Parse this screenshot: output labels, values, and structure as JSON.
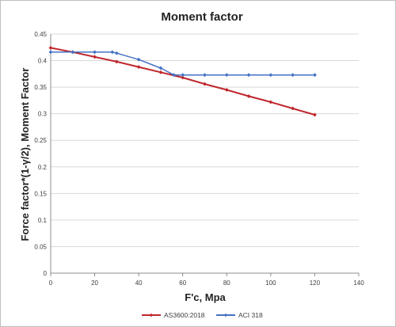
{
  "chart_data": {
    "type": "line",
    "title": "Moment factor",
    "xlabel": "F'c, Mpa",
    "ylabel": "Force factor*(1-γ/2),    Moment Factor",
    "xlim": [
      0,
      140
    ],
    "ylim": [
      0,
      0.45
    ],
    "x_ticks": [
      "0",
      "20",
      "40",
      "60",
      "80",
      "100",
      "120",
      "140"
    ],
    "y_ticks": [
      "0",
      "0.05",
      "0.1",
      "0.15",
      "0.2",
      "0.25",
      "0.3",
      "0.35",
      "0.4",
      "0.45"
    ],
    "grid": true,
    "legend_position": "bottom",
    "series": [
      {
        "name": "AS3600:2018",
        "color": "#c0272d",
        "marker": "diamond",
        "x": [
          0,
          10,
          20,
          30,
          40,
          50,
          60,
          70,
          80,
          90,
          100,
          110,
          120
        ],
        "y": [
          0.424,
          0.416,
          0.407,
          0.398,
          0.388,
          0.378,
          0.368,
          0.356,
          0.345,
          0.333,
          0.322,
          0.31,
          0.298
        ]
      },
      {
        "name": "ACI 318",
        "color": "#4472c4",
        "marker": "diamond",
        "x": [
          0,
          10,
          20,
          28,
          30,
          40,
          50,
          56,
          60,
          70,
          80,
          90,
          100,
          110,
          120
        ],
        "y": [
          0.416,
          0.416,
          0.416,
          0.416,
          0.414,
          0.402,
          0.386,
          0.373,
          0.373,
          0.373,
          0.373,
          0.373,
          0.373,
          0.373,
          0.373
        ]
      }
    ]
  }
}
